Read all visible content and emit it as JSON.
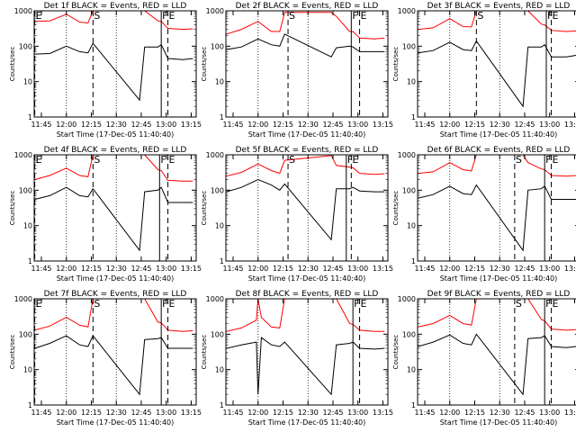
{
  "chart_data": [
    {
      "type": "line",
      "title": "Det 1f BLACK = Events, RED = LLD",
      "ylabel": "Counts/sec",
      "xlabel": "Start Time (17-Dec-05 11:40:40)",
      "x_ticks": [
        "11:45",
        "12:00",
        "12:15",
        "12:30",
        "12:45",
        "13:00",
        "13:15"
      ],
      "y_ticks": [
        "1",
        "10",
        "100",
        "1000"
      ],
      "yscale": "log",
      "ylim": [
        1,
        1000
      ],
      "markers": [
        {
          "label": "E",
          "x": "11:41"
        },
        {
          "label": "S",
          "x": "12:16"
        },
        {
          "label": "F",
          "x": "12:57"
        },
        {
          "label": "E",
          "x": "13:01"
        }
      ],
      "series": [
        {
          "name": "Events",
          "color": "#000000",
          "x": [
            "11:41",
            "11:50",
            "12:00",
            "12:08",
            "12:13",
            "12:16",
            "12:44",
            "12:47",
            "12:55",
            "12:57",
            "13:01",
            "13:10",
            "13:16"
          ],
          "values": [
            60,
            62,
            100,
            70,
            65,
            120,
            3,
            95,
            95,
            110,
            45,
            42,
            45
          ]
        },
        {
          "name": "LLD",
          "color": "#ff0000",
          "x": [
            "11:41",
            "11:50",
            "12:00",
            "12:08",
            "12:13",
            "12:16",
            "12:44",
            "12:47",
            "12:55",
            "12:57",
            "13:01",
            "13:10",
            "13:16"
          ],
          "values": [
            500,
            520,
            800,
            480,
            450,
            1000,
            1000,
            1000,
            520,
            500,
            320,
            300,
            310
          ]
        }
      ]
    },
    {
      "type": "line",
      "title": "Det 2f BLACK = Events, RED = LLD",
      "ylabel": "Counts/sec",
      "xlabel": "Start Time (17-Dec-05 11:40:40)",
      "x_ticks": [
        "11:45",
        "12:00",
        "12:15",
        "12:30",
        "12:45",
        "13:00",
        "13:15"
      ],
      "y_ticks": [
        "1",
        "10",
        "100",
        "1000"
      ],
      "yscale": "log",
      "ylim": [
        1,
        1000
      ],
      "markers": [
        {
          "label": "S",
          "x": "12:18"
        },
        {
          "label": "F",
          "x": "12:56"
        },
        {
          "label": "E",
          "x": "13:01"
        }
      ],
      "series": [
        {
          "name": "Events",
          "color": "#000000",
          "x": [
            "11:41",
            "11:50",
            "12:00",
            "12:08",
            "12:13",
            "12:16",
            "12:44",
            "12:47",
            "12:55",
            "12:57",
            "13:01",
            "13:10",
            "13:16"
          ],
          "values": [
            80,
            95,
            160,
            110,
            100,
            220,
            50,
            90,
            100,
            95,
            70,
            70,
            70
          ]
        },
        {
          "name": "LLD",
          "color": "#ff0000",
          "x": [
            "11:41",
            "11:50",
            "12:00",
            "12:08",
            "12:13",
            "12:16",
            "12:44",
            "12:47",
            "12:55",
            "12:57",
            "13:01",
            "13:10",
            "13:16"
          ],
          "values": [
            220,
            300,
            500,
            260,
            260,
            900,
            900,
            700,
            260,
            260,
            170,
            160,
            170
          ]
        }
      ]
    },
    {
      "type": "line",
      "title": "Det 3f BLACK = Events, RED = LLD",
      "ylabel": "Counts/sec",
      "xlabel": "Start Time (17-Dec-05 11:40:40)",
      "x_ticks": [
        "11:45",
        "12:00",
        "12:15",
        "12:30",
        "12:45",
        "13:00",
        "13:15"
      ],
      "y_ticks": [
        "1",
        "10",
        "100",
        "1000"
      ],
      "yscale": "log",
      "ylim": [
        1,
        1000
      ],
      "markers": [
        {
          "label": "S",
          "x": "12:16"
        },
        {
          "label": "F",
          "x": "12:58"
        },
        {
          "label": "E",
          "x": "13:01"
        }
      ],
      "series": [
        {
          "name": "Events",
          "color": "#000000",
          "x": [
            "11:41",
            "11:50",
            "12:00",
            "12:08",
            "12:13",
            "12:16",
            "12:44",
            "12:47",
            "12:55",
            "12:57",
            "13:01",
            "13:10",
            "13:16"
          ],
          "values": [
            65,
            75,
            130,
            80,
            75,
            140,
            2,
            95,
            95,
            110,
            50,
            50,
            55
          ]
        },
        {
          "name": "LLD",
          "color": "#ff0000",
          "x": [
            "11:41",
            "11:50",
            "12:00",
            "12:08",
            "12:13",
            "12:16",
            "12:44",
            "12:47",
            "12:55",
            "12:57",
            "13:01",
            "13:10",
            "13:16"
          ],
          "values": [
            300,
            330,
            600,
            360,
            350,
            1000,
            1000,
            1000,
            420,
            400,
            280,
            260,
            270
          ]
        }
      ]
    },
    {
      "type": "line",
      "title": "Det 4f BLACK = Events, RED = LLD",
      "ylabel": "Counts/sec",
      "xlabel": "Start Time (17-Dec-05 11:40:40)",
      "x_ticks": [
        "11:45",
        "12:00",
        "12:15",
        "12:30",
        "12:45",
        "13:00",
        "13:15"
      ],
      "y_ticks": [
        "1",
        "10",
        "100",
        "1000"
      ],
      "yscale": "log",
      "ylim": [
        1,
        1000
      ],
      "markers": [
        {
          "label": "E",
          "x": "11:41"
        },
        {
          "label": "S",
          "x": "12:16"
        },
        {
          "label": "F",
          "x": "12:56"
        },
        {
          "label": "E",
          "x": "13:01"
        }
      ],
      "series": [
        {
          "name": "Events",
          "color": "#000000",
          "x": [
            "11:41",
            "11:50",
            "12:00",
            "12:08",
            "12:13",
            "12:16",
            "12:44",
            "12:47",
            "12:55",
            "12:57",
            "13:01",
            "13:10",
            "13:16"
          ],
          "values": [
            55,
            70,
            120,
            70,
            65,
            110,
            2,
            90,
            100,
            120,
            45,
            45,
            45
          ]
        },
        {
          "name": "LLD",
          "color": "#ff0000",
          "x": [
            "11:41",
            "11:50",
            "12:00",
            "12:08",
            "12:13",
            "12:16",
            "12:44",
            "12:47",
            "12:55",
            "12:57",
            "13:01",
            "13:10",
            "13:16"
          ],
          "values": [
            200,
            260,
            420,
            260,
            240,
            1000,
            1000,
            1000,
            380,
            360,
            190,
            180,
            180
          ]
        }
      ]
    },
    {
      "type": "line",
      "title": "Det 5f BLACK = Events, RED = LLD",
      "ylabel": "Counts/sec",
      "xlabel": "Start Time (17-Dec-05 11:40:40)",
      "x_ticks": [
        "11:45",
        "12:00",
        "12:15",
        "12:30",
        "12:45",
        "13:00",
        "13:15"
      ],
      "y_ticks": [
        "1",
        "10",
        "100",
        "1000"
      ],
      "yscale": "log",
      "ylim": [
        1,
        1000
      ],
      "markers": [
        {
          "label": "S",
          "x": "12:18"
        },
        {
          "label": "F",
          "x": "12:53"
        },
        {
          "label": "E",
          "x": "12:56"
        }
      ],
      "series": [
        {
          "name": "Events",
          "color": "#000000",
          "x": [
            "11:41",
            "11:50",
            "12:00",
            "12:08",
            "12:13",
            "12:16",
            "12:44",
            "12:47",
            "12:55",
            "12:57",
            "13:01",
            "13:10",
            "13:16"
          ],
          "values": [
            90,
            120,
            200,
            140,
            100,
            150,
            4,
            110,
            110,
            120,
            95,
            90,
            90
          ]
        },
        {
          "name": "LLD",
          "color": "#ff0000",
          "x": [
            "11:41",
            "11:50",
            "12:00",
            "12:08",
            "12:13",
            "12:16",
            "12:44",
            "12:47",
            "12:55",
            "12:57",
            "13:01",
            "13:10",
            "13:16"
          ],
          "values": [
            250,
            320,
            550,
            360,
            300,
            700,
            950,
            500,
            450,
            430,
            300,
            280,
            290
          ]
        }
      ]
    },
    {
      "type": "line",
      "title": "Det 6f BLACK = Events, RED = LLD",
      "ylabel": "Counts/sec",
      "xlabel": "Start Time (17-Dec-05 11:40:40)",
      "x_ticks": [
        "11:45",
        "12:00",
        "12:15",
        "12:30",
        "12:45",
        "13:00",
        "13:15"
      ],
      "y_ticks": [
        "1",
        "10",
        "100",
        "1000"
      ],
      "yscale": "log",
      "ylim": [
        1,
        1000
      ],
      "markers": [
        {
          "label": "S",
          "x": "12:39"
        },
        {
          "label": "F",
          "x": "12:57"
        },
        {
          "label": "E",
          "x": "13:01"
        }
      ],
      "series": [
        {
          "name": "Events",
          "color": "#000000",
          "x": [
            "11:41",
            "11:50",
            "12:00",
            "12:08",
            "12:13",
            "12:16",
            "12:44",
            "12:47",
            "12:55",
            "12:57",
            "13:01",
            "13:10",
            "13:16"
          ],
          "values": [
            60,
            75,
            130,
            80,
            75,
            140,
            2,
            100,
            110,
            130,
            55,
            55,
            55
          ]
        },
        {
          "name": "LLD",
          "color": "#ff0000",
          "x": [
            "11:41",
            "11:50",
            "12:00",
            "12:08",
            "12:13",
            "12:16",
            "12:44",
            "12:47",
            "12:55",
            "12:57",
            "13:01",
            "13:10",
            "13:16"
          ],
          "values": [
            300,
            330,
            600,
            380,
            350,
            1000,
            1000,
            600,
            400,
            380,
            260,
            250,
            260
          ]
        }
      ]
    },
    {
      "type": "line",
      "title": "Det 7f BLACK = Events, RED = LLD",
      "ylabel": "Counts/sec",
      "xlabel": "Start Time (17-Dec-05 11:40:40)",
      "x_ticks": [
        "11:45",
        "12:00",
        "12:15",
        "12:30",
        "12:45",
        "13:00",
        "13:15"
      ],
      "y_ticks": [
        "1",
        "10",
        "100",
        "1000"
      ],
      "yscale": "log",
      "ylim": [
        1,
        1000
      ],
      "markers": [
        {
          "label": "E",
          "x": "11:41"
        },
        {
          "label": "S",
          "x": "12:16"
        },
        {
          "label": "F",
          "x": "12:57"
        },
        {
          "label": "E",
          "x": "13:01"
        }
      ],
      "series": [
        {
          "name": "Events",
          "color": "#000000",
          "x": [
            "11:41",
            "11:50",
            "12:00",
            "12:08",
            "12:13",
            "12:16",
            "12:44",
            "12:47",
            "12:55",
            "12:57",
            "13:01",
            "13:10",
            "13:16"
          ],
          "values": [
            40,
            55,
            90,
            50,
            45,
            90,
            2,
            70,
            75,
            80,
            40,
            40,
            40
          ]
        },
        {
          "name": "LLD",
          "color": "#ff0000",
          "x": [
            "11:41",
            "11:50",
            "12:00",
            "12:08",
            "12:13",
            "12:16",
            "12:44",
            "12:47",
            "12:55",
            "12:57",
            "13:01",
            "13:10",
            "13:16"
          ],
          "values": [
            130,
            170,
            300,
            180,
            160,
            1000,
            1000,
            1000,
            220,
            210,
            130,
            120,
            125
          ]
        }
      ]
    },
    {
      "type": "line",
      "title": "Det 8f BLACK = Events, RED = LLD",
      "ylabel": "Counts/sec",
      "xlabel": "Start Time (17-Dec-05 11:40:40)",
      "x_ticks": [
        "11:45",
        "12:00",
        "12:15",
        "12:30",
        "12:45",
        "13:00",
        "13:15"
      ],
      "y_ticks": [
        "1",
        "10",
        "100",
        "1000"
      ],
      "yscale": "log",
      "ylim": [
        1,
        1000
      ],
      "markers": [
        {
          "label": "F",
          "x": "12:57"
        },
        {
          "label": "E",
          "x": "13:01"
        }
      ],
      "series": [
        {
          "name": "Events",
          "color": "#000000",
          "x": [
            "11:41",
            "11:50",
            "11:59",
            "12:00",
            "12:02",
            "12:08",
            "12:13",
            "12:16",
            "12:44",
            "12:47",
            "12:55",
            "12:57",
            "13:01",
            "13:10",
            "13:16"
          ],
          "values": [
            40,
            50,
            60,
            2,
            80,
            50,
            45,
            60,
            2,
            50,
            55,
            60,
            40,
            38,
            40
          ]
        },
        {
          "name": "LLD",
          "color": "#ff0000",
          "x": [
            "11:41",
            "11:50",
            "11:59",
            "12:00",
            "12:02",
            "12:08",
            "12:13",
            "12:16",
            "12:44",
            "12:47",
            "12:55",
            "12:57",
            "13:01",
            "13:10",
            "13:16"
          ],
          "values": [
            120,
            150,
            250,
            1000,
            300,
            160,
            150,
            1000,
            1000,
            1000,
            200,
            190,
            130,
            120,
            120
          ]
        }
      ]
    },
    {
      "type": "line",
      "title": "Det 9f BLACK = Events, RED = LLD",
      "ylabel": "Counts/sec",
      "xlabel": "Start Time (17-Dec-05 11:40:40)",
      "x_ticks": [
        "11:45",
        "12:00",
        "12:15",
        "12:30",
        "12:45",
        "13:00",
        "13:15"
      ],
      "y_ticks": [
        "1",
        "10",
        "100",
        "1000"
      ],
      "yscale": "log",
      "ylim": [
        1,
        1000
      ],
      "markers": [
        {
          "label": "S",
          "x": "12:39"
        },
        {
          "label": "F",
          "x": "12:57"
        },
        {
          "label": "E",
          "x": "13:01"
        }
      ],
      "series": [
        {
          "name": "Events",
          "color": "#000000",
          "x": [
            "11:41",
            "11:50",
            "12:00",
            "12:08",
            "12:13",
            "12:16",
            "12:44",
            "12:47",
            "12:55",
            "12:57",
            "13:01",
            "13:10",
            "13:16"
          ],
          "values": [
            45,
            60,
            95,
            55,
            50,
            100,
            2,
            75,
            80,
            90,
            45,
            42,
            45
          ]
        },
        {
          "name": "LLD",
          "color": "#ff0000",
          "x": [
            "11:41",
            "11:50",
            "12:00",
            "12:08",
            "12:13",
            "12:16",
            "12:44",
            "12:47",
            "12:55",
            "12:57",
            "13:01",
            "13:10",
            "13:16"
          ],
          "values": [
            160,
            200,
            340,
            200,
            180,
            1000,
            1000,
            1000,
            260,
            240,
            140,
            130,
            135
          ]
        }
      ]
    }
  ]
}
